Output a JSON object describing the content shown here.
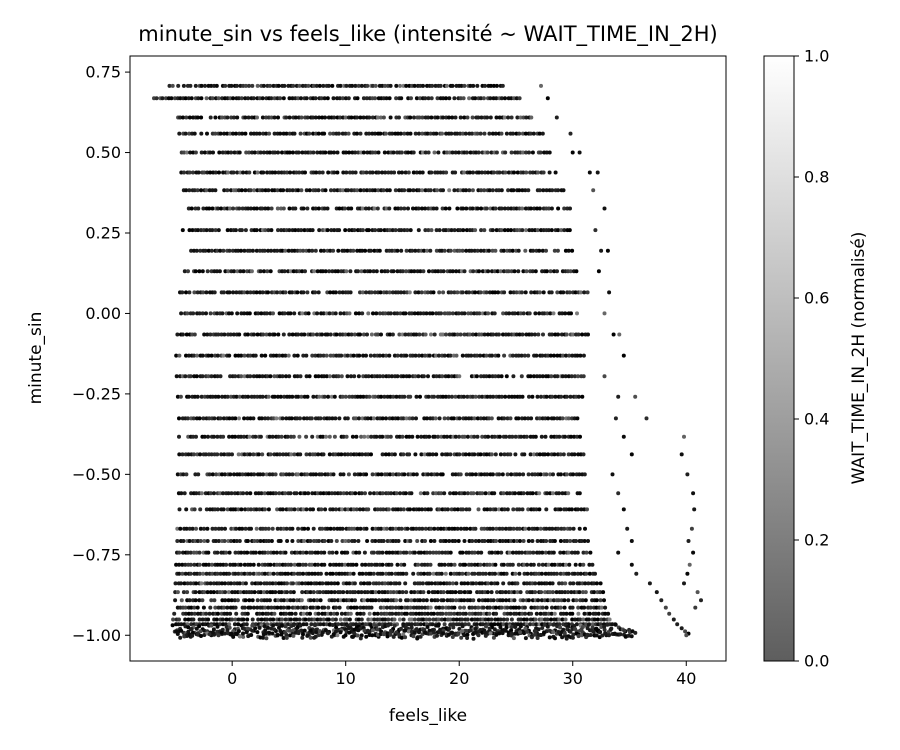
{
  "chart_data": {
    "type": "scatter",
    "title": "minute_sin vs feels_like (intensité ~ WAIT_TIME_IN_2H)",
    "xlabel": "feels_like",
    "ylabel": "minute_sin",
    "xlim": [
      -9,
      43.5
    ],
    "ylim": [
      -1.08,
      0.8
    ],
    "xticks": [
      0,
      10,
      20,
      30,
      40
    ],
    "xtick_labels": [
      "0",
      "10",
      "20",
      "30",
      "40"
    ],
    "yticks": [
      -1.0,
      -0.75,
      -0.5,
      -0.25,
      0.0,
      0.25,
      0.5,
      0.75
    ],
    "ytick_labels": [
      "−1.00",
      "−0.75",
      "−0.50",
      "−0.25",
      "0.00",
      "0.25",
      "0.50",
      "0.75"
    ],
    "grid": false,
    "colormap": "greys",
    "colorbar": {
      "label": "WAIT_TIME_IN_2H (normalisé)",
      "range": [
        0.0,
        1.0
      ],
      "ticks": [
        0.0,
        0.2,
        0.4,
        0.6,
        0.8,
        1.0
      ],
      "tick_labels": [
        "0.0",
        "0.2",
        "0.4",
        "0.6",
        "0.8",
        "1.0"
      ],
      "color_low": "#5e5e5e",
      "color_high": "#ffffff"
    },
    "rows": [
      {
        "y": 0.707,
        "x": [
          -5.5,
          24.0
        ],
        "outliers": [
          27.2
        ]
      },
      {
        "y": 0.669,
        "x": [
          -6.9,
          25.5
        ],
        "outliers": [
          27.8
        ]
      },
      {
        "y": 0.609,
        "x": [
          -4.8,
          26.5
        ],
        "outliers": [
          28.6
        ]
      },
      {
        "y": 0.559,
        "x": [
          -4.6,
          27.5
        ],
        "outliers": [
          29.8
        ]
      },
      {
        "y": 0.5,
        "x": [
          -4.5,
          28.2
        ],
        "outliers": [
          30.0,
          30.6
        ]
      },
      {
        "y": 0.438,
        "x": [
          -4.5,
          29.0
        ],
        "outliers": [
          31.5,
          32.2
        ]
      },
      {
        "y": 0.383,
        "x": [
          -4.3,
          29.5
        ],
        "outliers": [
          31.8
        ]
      },
      {
        "y": 0.326,
        "x": [
          -3.8,
          30.0
        ],
        "outliers": [
          32.8
        ]
      },
      {
        "y": 0.259,
        "x": [
          -4.3,
          29.8
        ],
        "outliers": [
          32.0
        ]
      },
      {
        "y": 0.195,
        "x": [
          -3.6,
          30.0
        ],
        "outliers": [
          32.5,
          33.1
        ]
      },
      {
        "y": 0.131,
        "x": [
          -4.2,
          30.5
        ],
        "outliers": [
          32.3
        ]
      },
      {
        "y": 0.0654,
        "x": [
          -4.6,
          31.5
        ],
        "outliers": [
          33.2
        ]
      },
      {
        "y": 0.0,
        "x": [
          -4.7,
          30.8
        ],
        "outliers": [
          32.8
        ]
      },
      {
        "y": -0.0654,
        "x": [
          -4.8,
          31.5
        ],
        "outliers": [
          33.6,
          34.1
        ]
      },
      {
        "y": -0.131,
        "x": [
          -4.9,
          31.0
        ],
        "outliers": [
          34.5
        ]
      },
      {
        "y": -0.195,
        "x": [
          -4.9,
          31.2
        ],
        "outliers": [
          32.8
        ]
      },
      {
        "y": -0.259,
        "x": [
          -4.8,
          31.0
        ],
        "outliers": [
          34.0,
          35.5
        ]
      },
      {
        "y": -0.326,
        "x": [
          -4.9,
          30.6
        ],
        "outliers": [
          33.8,
          36.5
        ]
      },
      {
        "y": -0.383,
        "x": [
          -4.7,
          31.0
        ],
        "outliers": [
          34.5,
          39.8
        ]
      },
      {
        "y": -0.438,
        "x": [
          -4.9,
          31.5
        ],
        "outliers": [
          35.2,
          39.6
        ]
      },
      {
        "y": -0.5,
        "x": [
          -4.8,
          31.2
        ],
        "outliers": [
          33.5,
          40.1
        ]
      },
      {
        "y": -0.559,
        "x": [
          -4.7,
          31.0
        ],
        "outliers": [
          34.0,
          40.6
        ]
      },
      {
        "y": -0.609,
        "x": [
          -4.6,
          31.3
        ],
        "outliers": [
          34.5,
          40.7
        ]
      },
      {
        "y": -0.669,
        "x": [
          -4.8,
          31.5
        ],
        "outliers": [
          34.8,
          40.5
        ]
      },
      {
        "y": -0.707,
        "x": [
          -4.8,
          31.5
        ],
        "outliers": [
          35.2,
          40.2
        ]
      },
      {
        "y": -0.743,
        "x": [
          -4.9,
          31.8
        ],
        "outliers": [
          34.0,
          40.6
        ]
      },
      {
        "y": -0.781,
        "x": [
          -4.9,
          32.0
        ],
        "outliers": [
          35.2,
          40.3
        ]
      },
      {
        "y": -0.809,
        "x": [
          -4.9,
          32.2
        ],
        "outliers": [
          35.6,
          40.1
        ]
      },
      {
        "y": -0.839,
        "x": [
          -5.0,
          32.5
        ],
        "outliers": [
          36.8,
          39.8
        ]
      },
      {
        "y": -0.866,
        "x": [
          -5.0,
          32.8
        ],
        "outliers": [
          37.4,
          41.0
        ]
      },
      {
        "y": -0.891,
        "x": [
          -5.0,
          32.8
        ],
        "outliers": [
          37.8,
          41.3
        ]
      },
      {
        "y": -0.914,
        "x": [
          -5.1,
          33.0
        ],
        "outliers": [
          38.2,
          40.8
        ]
      },
      {
        "y": -0.933,
        "x": [
          -5.1,
          33.2
        ],
        "outliers": [
          38.5
        ]
      },
      {
        "y": -0.951,
        "x": [
          -5.2,
          33.5
        ],
        "outliers": [
          38.9
        ]
      },
      {
        "y": -0.966,
        "x": [
          -5.2,
          34.0
        ],
        "outliers": [
          39.2
        ]
      },
      {
        "y": -0.978,
        "x": [
          -5.2,
          34.5
        ],
        "outliers": [
          39.6
        ]
      },
      {
        "y": -0.988,
        "x": [
          -5.1,
          35.0
        ],
        "outliers": [
          39.9
        ]
      },
      {
        "y": -0.995,
        "x": [
          -5.0,
          35.8
        ],
        "outliers": [
          40.2
        ]
      },
      {
        "y": -1.0,
        "x": [
          -4.8,
          35.6
        ],
        "outliers": [
          40.0
        ]
      }
    ]
  }
}
